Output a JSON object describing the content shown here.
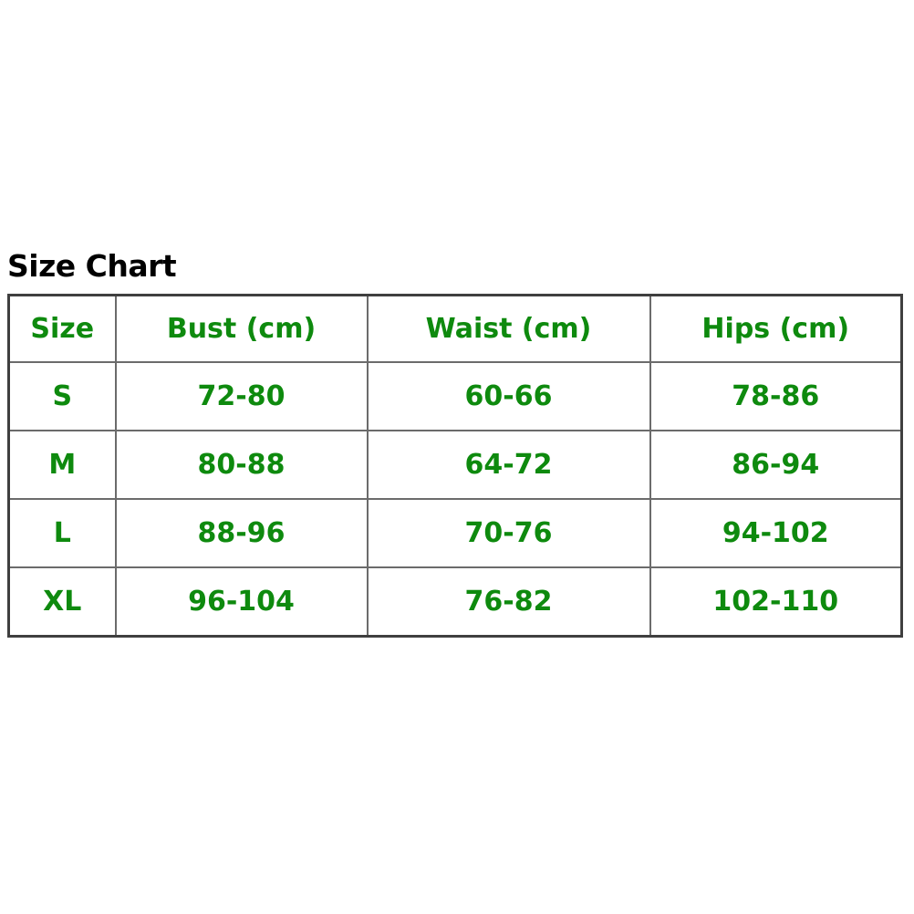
{
  "title": "Size Chart",
  "colors": {
    "heading_text": "#000000",
    "table_text": "#0E8A0E",
    "inner_border": "#6B6B6B",
    "outer_border": "#3F3F3F",
    "background": "#FFFFFF"
  },
  "chart_data": {
    "type": "table",
    "title": "Size Chart",
    "columns": [
      "Size",
      "Bust (cm)",
      "Waist (cm)",
      "Hips (cm)"
    ],
    "rows": [
      [
        "S",
        "72-80",
        "60-66",
        "78-86"
      ],
      [
        "M",
        "80-88",
        "64-72",
        "86-94"
      ],
      [
        "L",
        "88-96",
        "70-76",
        "94-102"
      ],
      [
        "XL",
        "96-104",
        "76-82",
        "102-110"
      ]
    ]
  }
}
